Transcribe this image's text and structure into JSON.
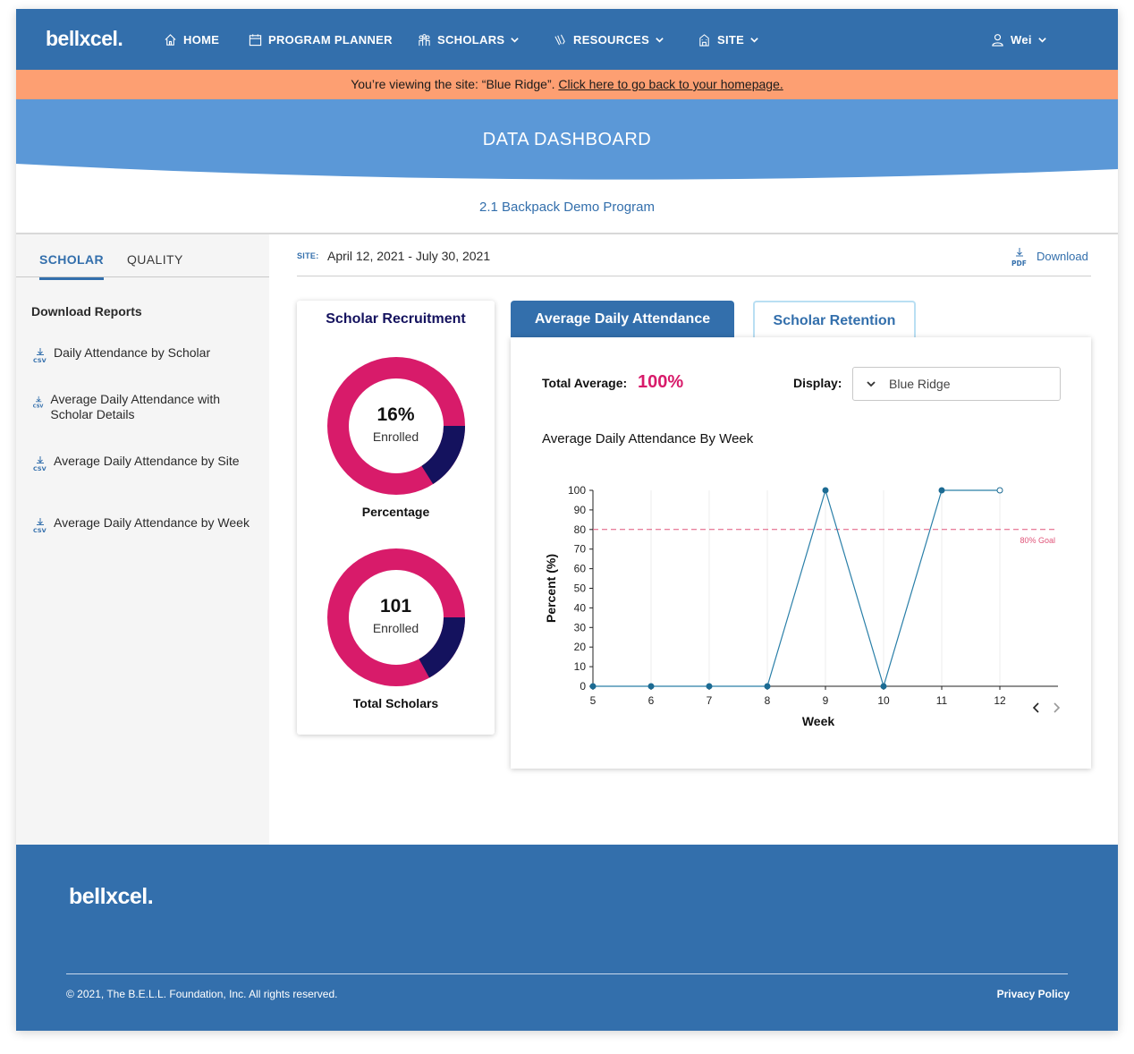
{
  "nav": {
    "logo": "bellxcel.",
    "items": [
      {
        "label": "HOME",
        "icon": "home-icon"
      },
      {
        "label": "PROGRAM PLANNER",
        "icon": "calendar-icon"
      },
      {
        "label": "SCHOLARS",
        "icon": "scholars-icon"
      },
      {
        "label": "RESOURCES",
        "icon": "resources-icon"
      },
      {
        "label": "SITE",
        "icon": "building-icon"
      }
    ],
    "user": "Wei"
  },
  "banner": {
    "text": "You’re viewing the site: “Blue Ridge”. ",
    "link": "Click here to go back to your homepage."
  },
  "header": {
    "title": "DATA DASHBOARD",
    "program": "2.1 Backpack Demo Program"
  },
  "sidebar": {
    "tabs": [
      "SCHOLAR",
      "QUALITY"
    ],
    "download_heading": "Download Reports",
    "reports": [
      {
        "label": "Daily Attendance by Scholar",
        "type": "CSV"
      },
      {
        "label": "Average Daily Attendance with Scholar Details",
        "type": "CSV"
      },
      {
        "label": "Average Daily Attendance by Site",
        "type": "CSV"
      },
      {
        "label": "Average Daily Attendance by Week",
        "type": "CSV"
      }
    ]
  },
  "main": {
    "site_label": "SITE:",
    "date_range": "April 12, 2021 - July 30, 2021",
    "download_label": "Download",
    "download_type": "PDF"
  },
  "recruitment": {
    "title": "Scholar Recruitment",
    "percentage": {
      "value": "16%",
      "sub": "Enrolled",
      "caption": "Percentage",
      "fraction": 0.16
    },
    "total": {
      "value": "101",
      "sub": "Enrolled",
      "caption": "Total Scholars",
      "fraction": 0.17
    },
    "colors": {
      "primary": "#d81b6a",
      "secondary": "#14125e"
    }
  },
  "chart_tabs": [
    "Average Daily Attendance",
    "Scholar Retention"
  ],
  "attendance": {
    "total_avg_label": "Total Average:",
    "total_avg_value": "100%",
    "display_label": "Display:",
    "display_value": "Blue Ridge",
    "chart_title": "Average Daily Attendance By Week"
  },
  "chart_data": {
    "type": "line",
    "title": "Average Daily Attendance By Week",
    "xlabel": "Week",
    "ylabel": "Percent (%)",
    "x": [
      5,
      6,
      7,
      8,
      9,
      10,
      11,
      12
    ],
    "series": [
      {
        "values": [
          0,
          0,
          0,
          0,
          100,
          0,
          100,
          100
        ]
      }
    ],
    "ylim": [
      0,
      100
    ],
    "yticks": [
      0,
      10,
      20,
      30,
      40,
      50,
      60,
      70,
      80,
      90,
      100
    ],
    "goal": {
      "value": 80,
      "label": "80% Goal"
    },
    "grid": "vertical",
    "line_color": "#2a7fa8",
    "goal_color": "#e0557a"
  },
  "footer": {
    "logo": "bellxcel.",
    "copyright": "© 2021, The B.E.L.L. Foundation, Inc. All rights reserved.",
    "privacy": "Privacy Policy"
  }
}
